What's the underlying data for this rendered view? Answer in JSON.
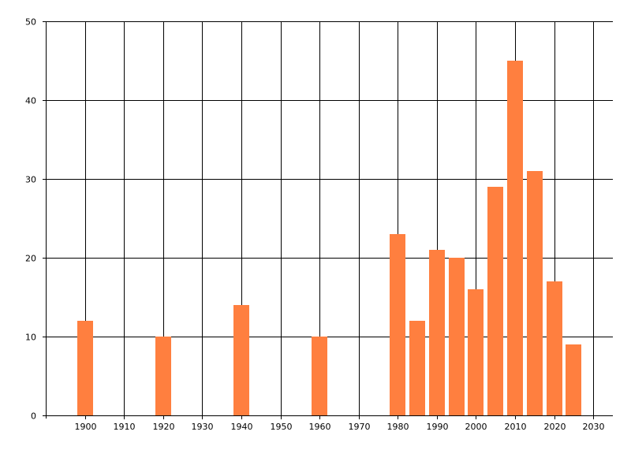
{
  "chart_data": {
    "type": "bar",
    "x": [
      1900,
      1920,
      1940,
      1960,
      1980,
      1985,
      1990,
      1995,
      2000,
      2005,
      2010,
      2015,
      2020,
      2025
    ],
    "values": [
      12,
      10,
      14,
      10,
      23,
      12,
      21,
      20,
      16,
      29,
      45,
      31,
      17,
      9
    ],
    "xlim": [
      1890,
      2035
    ],
    "ylim": [
      0,
      50
    ],
    "x_ticks": [
      1900,
      1910,
      1920,
      1930,
      1940,
      1950,
      1960,
      1970,
      1980,
      1990,
      2000,
      2010,
      2020,
      2030
    ],
    "y_ticks": [
      0,
      10,
      20,
      30,
      40,
      50
    ],
    "bar_color": "#FF7F3F",
    "grid": true,
    "title": "",
    "xlabel": "",
    "ylabel": ""
  }
}
